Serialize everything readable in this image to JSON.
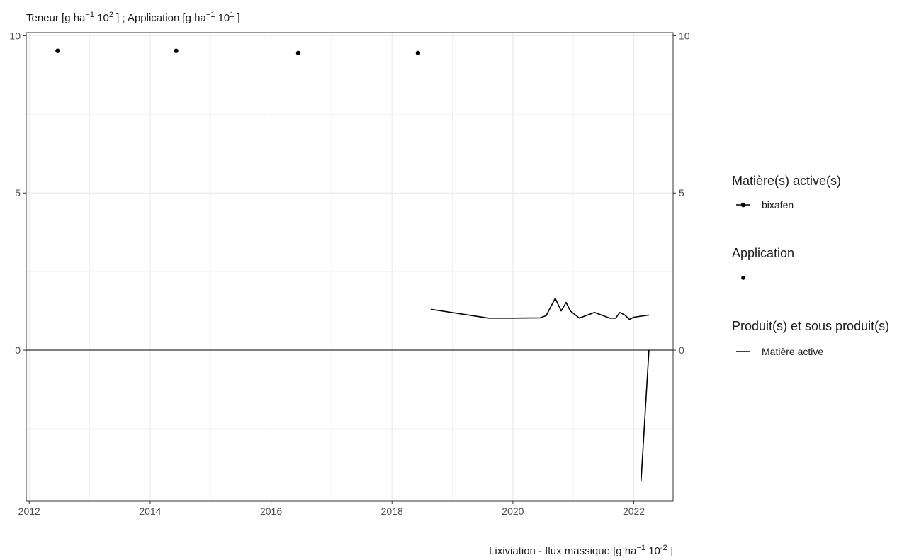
{
  "chart_data": {
    "type": "line",
    "left_axis_label": {
      "part1": "Teneur [g  ha",
      "sup1": "−1",
      "part2": " 10",
      "sup2": "2",
      "part3": " ] ; Application [g  ha",
      "sup3": "−1",
      "part4": " 10",
      "sup4": "1",
      "part5": " ]"
    },
    "x_axis_label": {
      "part1": "Lixiviation - flux massique [g  ha",
      "sup1": "−1",
      "part2": " 10",
      "sup2": "-2",
      "part3": " ]"
    },
    "xlim": [
      2011.95,
      2022.65
    ],
    "ylim": [
      -4.8,
      10.1
    ],
    "x_ticks": [
      2012,
      2014,
      2016,
      2018,
      2020,
      2022
    ],
    "y_ticks": [
      0,
      5,
      10
    ],
    "y_ticks_right": [
      0,
      5,
      10
    ],
    "grid": true,
    "baseline": 0,
    "series": [
      {
        "name": "bixafen",
        "kind": "point",
        "points": [
          {
            "x": 2012.47,
            "y": 9.52
          },
          {
            "x": 2014.43,
            "y": 9.52
          },
          {
            "x": 2016.45,
            "y": 9.45
          },
          {
            "x": 2018.43,
            "y": 9.45
          }
        ]
      },
      {
        "name": "Matière active",
        "kind": "line",
        "points": [
          {
            "x": 2018.65,
            "y": 1.3
          },
          {
            "x": 2019.6,
            "y": 1.02
          },
          {
            "x": 2020.0,
            "y": 1.02
          },
          {
            "x": 2020.45,
            "y": 1.03
          },
          {
            "x": 2020.55,
            "y": 1.1
          },
          {
            "x": 2020.7,
            "y": 1.65
          },
          {
            "x": 2020.8,
            "y": 1.25
          },
          {
            "x": 2020.88,
            "y": 1.52
          },
          {
            "x": 2020.95,
            "y": 1.25
          },
          {
            "x": 2021.1,
            "y": 1.02
          },
          {
            "x": 2021.35,
            "y": 1.2
          },
          {
            "x": 2021.6,
            "y": 1.02
          },
          {
            "x": 2021.7,
            "y": 1.02
          },
          {
            "x": 2021.77,
            "y": 1.2
          },
          {
            "x": 2021.85,
            "y": 1.12
          },
          {
            "x": 2021.93,
            "y": 0.98
          },
          {
            "x": 2022.0,
            "y": 1.05
          },
          {
            "x": 2022.25,
            "y": 1.12
          }
        ]
      },
      {
        "name": "Matière active",
        "kind": "line",
        "points": [
          {
            "x": 2022.12,
            "y": -4.15
          },
          {
            "x": 2022.25,
            "y": 0
          }
        ]
      }
    ]
  },
  "legend": {
    "group1_title": "Matière(s) active(s)",
    "group1_item": "bixafen",
    "group2_title": "Application",
    "group3_title": "Produit(s) et sous produit(s)",
    "group3_item": "Matière active"
  }
}
